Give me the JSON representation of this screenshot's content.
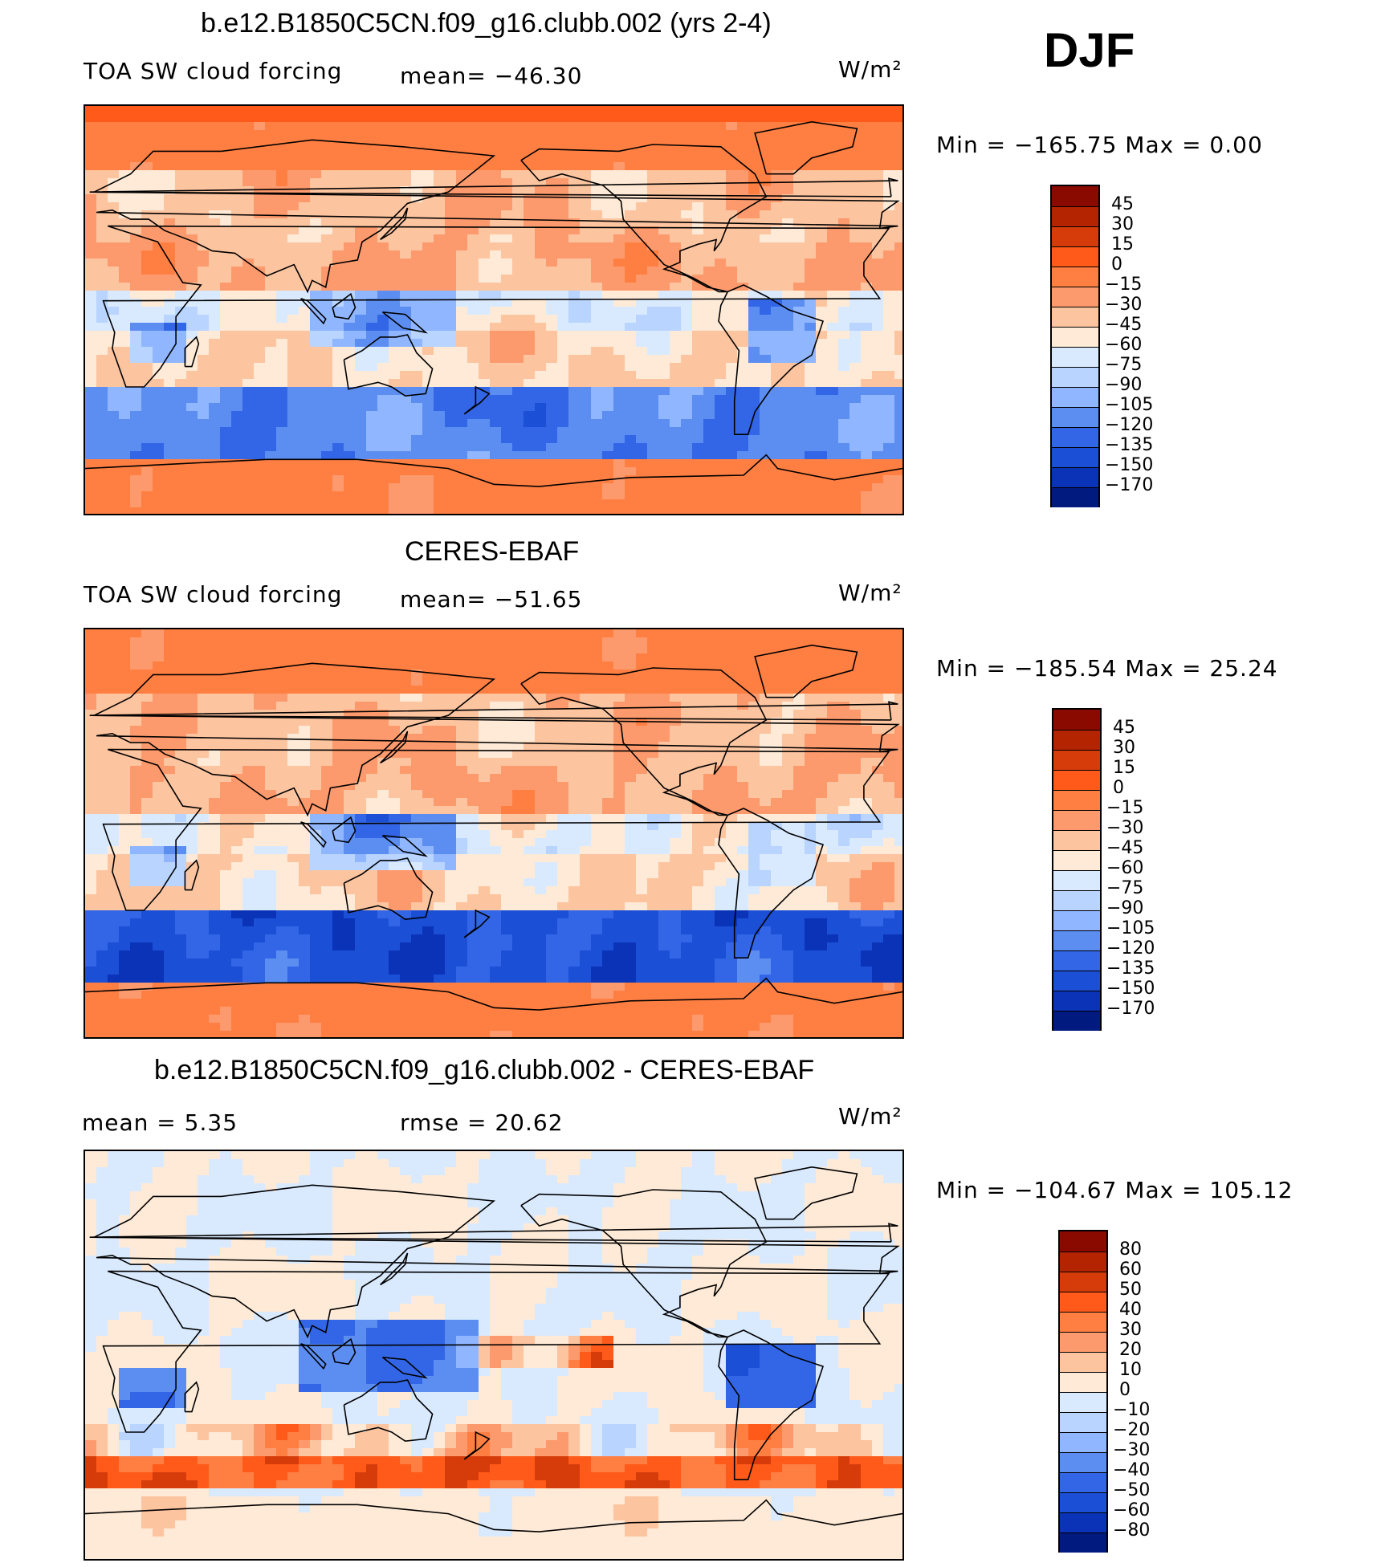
{
  "season": "DJF",
  "panels": [
    {
      "title": "b.e12.B1850C5CN.f09_g16.clubb.002 (yrs 2-4)",
      "left_text": "TOA SW cloud forcing",
      "mid_text": "mean= −46.30",
      "units": "W/m²",
      "minmax": "Min  =  −165.75  Max  =     0.00",
      "colorbar": {
        "labels": [
          "45",
          "30",
          "15",
          "0",
          "−15",
          "−30",
          "−45",
          "−60",
          "−75",
          "−90",
          "−105",
          "−120",
          "−135",
          "−150",
          "−170"
        ],
        "colors": [
          "#8b0a00",
          "#b42400",
          "#d63c0a",
          "#ff5a1a",
          "#ff7f43",
          "#fd9a6d",
          "#fdc4a0",
          "#feead6",
          "#d9eaff",
          "#b8d4ff",
          "#8fb6ff",
          "#5c8ef2",
          "#3366e6",
          "#1a4fd6",
          "#0a33b8",
          "#001a80"
        ]
      },
      "map_kind": "model"
    },
    {
      "title": "CERES-EBAF",
      "left_text": "TOA SW cloud forcing",
      "mid_text": "mean= −51.65",
      "units": "W/m²",
      "minmax": "Min  =  −185.54  Max  =   25.24",
      "colorbar": {
        "labels": [
          "45",
          "30",
          "15",
          "0",
          "−15",
          "−30",
          "−45",
          "−60",
          "−75",
          "−90",
          "−105",
          "−120",
          "−135",
          "−150",
          "−170"
        ],
        "colors": [
          "#8b0a00",
          "#b42400",
          "#d63c0a",
          "#ff5a1a",
          "#ff7f43",
          "#fd9a6d",
          "#fdc4a0",
          "#feead6",
          "#d9eaff",
          "#b8d4ff",
          "#8fb6ff",
          "#5c8ef2",
          "#3366e6",
          "#1a4fd6",
          "#0a33b8",
          "#001a80"
        ]
      },
      "map_kind": "obs"
    },
    {
      "title": "b.e12.B1850C5CN.f09_g16.clubb.002 - CERES-EBAF",
      "left_text": "mean  =     5.35",
      "mid_text": "rmse  =    20.62",
      "units": "W/m²",
      "minmax": "Min  =  −104.67  Max  =  105.12",
      "colorbar": {
        "labels": [
          "80",
          "60",
          "50",
          "40",
          "30",
          "20",
          "10",
          "0",
          "−10",
          "−20",
          "−30",
          "−40",
          "−50",
          "−60",
          "−80"
        ],
        "colors": [
          "#8b0a00",
          "#b42400",
          "#d63c0a",
          "#ff5a1a",
          "#ff7f43",
          "#fd9a6d",
          "#fdc4a0",
          "#feead6",
          "#d9eaff",
          "#b8d4ff",
          "#8fb6ff",
          "#5c8ef2",
          "#3366e6",
          "#1a4fd6",
          "#0a33b8",
          "#001a80"
        ]
      },
      "map_kind": "diff"
    }
  ],
  "chart_data": [
    {
      "type": "heatmap",
      "title": "b.e12.B1850C5CN.f09_g16.clubb.002 (yrs 2-4)",
      "variable": "TOA SW cloud forcing",
      "units": "W/m2",
      "mean": -46.3,
      "min": -165.75,
      "max": 0.0,
      "levels": [
        45,
        30,
        15,
        0,
        -15,
        -30,
        -45,
        -60,
        -75,
        -90,
        -105,
        -120,
        -135,
        -150,
        -170
      ]
    },
    {
      "type": "heatmap",
      "title": "CERES-EBAF",
      "variable": "TOA SW cloud forcing",
      "units": "W/m2",
      "mean": -51.65,
      "min": -185.54,
      "max": 25.24,
      "levels": [
        45,
        30,
        15,
        0,
        -15,
        -30,
        -45,
        -60,
        -75,
        -90,
        -105,
        -120,
        -135,
        -150,
        -170
      ]
    },
    {
      "type": "heatmap",
      "title": "b.e12.B1850C5CN.f09_g16.clubb.002 - CERES-EBAF",
      "units": "W/m2",
      "mean": 5.35,
      "rmse": 20.62,
      "min": -104.67,
      "max": 105.12,
      "levels": [
        80,
        60,
        50,
        40,
        30,
        20,
        10,
        0,
        -10,
        -20,
        -30,
        -40,
        -50,
        -60,
        -80
      ]
    }
  ]
}
